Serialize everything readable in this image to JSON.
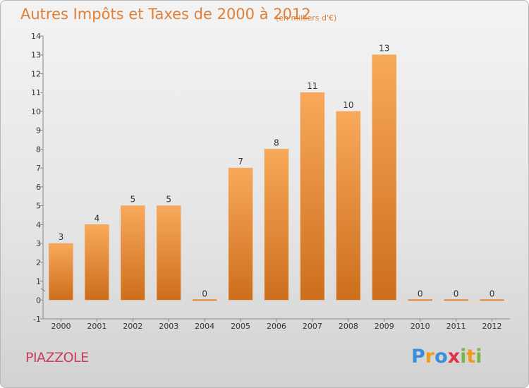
{
  "header": {
    "title": "Autres Impôts et Taxes de 2000 à 2012",
    "unit": "(en milliers d'€)"
  },
  "footer": {
    "commune": "PIAZZOLE",
    "logo_letters": [
      "P",
      "r",
      "o",
      "x",
      "i",
      "t",
      "i"
    ],
    "logo_colors": [
      "#3a8fd9",
      "#f29a1c",
      "#3a8fd9",
      "#e0324a",
      "#7ab648",
      "#f29a1c",
      "#7ab648"
    ]
  },
  "colors": {
    "bar_top": "#f8a95a",
    "bar_bottom": "#cc6e1c",
    "axis": "#888888",
    "title": "#e07f36",
    "commune": "#cf3a5e"
  },
  "chart_data": {
    "type": "bar",
    "title": "Autres Impôts et Taxes de 2000 à 2012",
    "subtitle": "(en milliers d'€)",
    "xlabel": "",
    "ylabel": "",
    "categories": [
      "2000",
      "2001",
      "2002",
      "2003",
      "2004",
      "2005",
      "2006",
      "2007",
      "2008",
      "2009",
      "2010",
      "2011",
      "2012"
    ],
    "values": [
      3,
      4,
      5,
      5,
      0,
      7,
      8,
      11,
      10,
      13,
      0,
      0,
      0
    ],
    "ylim": [
      -1,
      14
    ],
    "yticks": [
      "-1",
      "0",
      "1",
      "2",
      "3",
      "4",
      "5",
      "6",
      "7",
      "8",
      "9",
      "10",
      "11",
      "12",
      "13",
      "14"
    ],
    "ytick_values": [
      -1,
      0,
      1,
      2,
      3,
      4,
      5,
      6,
      7,
      8,
      9,
      10,
      11,
      12,
      13,
      14
    ],
    "grid": false,
    "legend": "none"
  }
}
